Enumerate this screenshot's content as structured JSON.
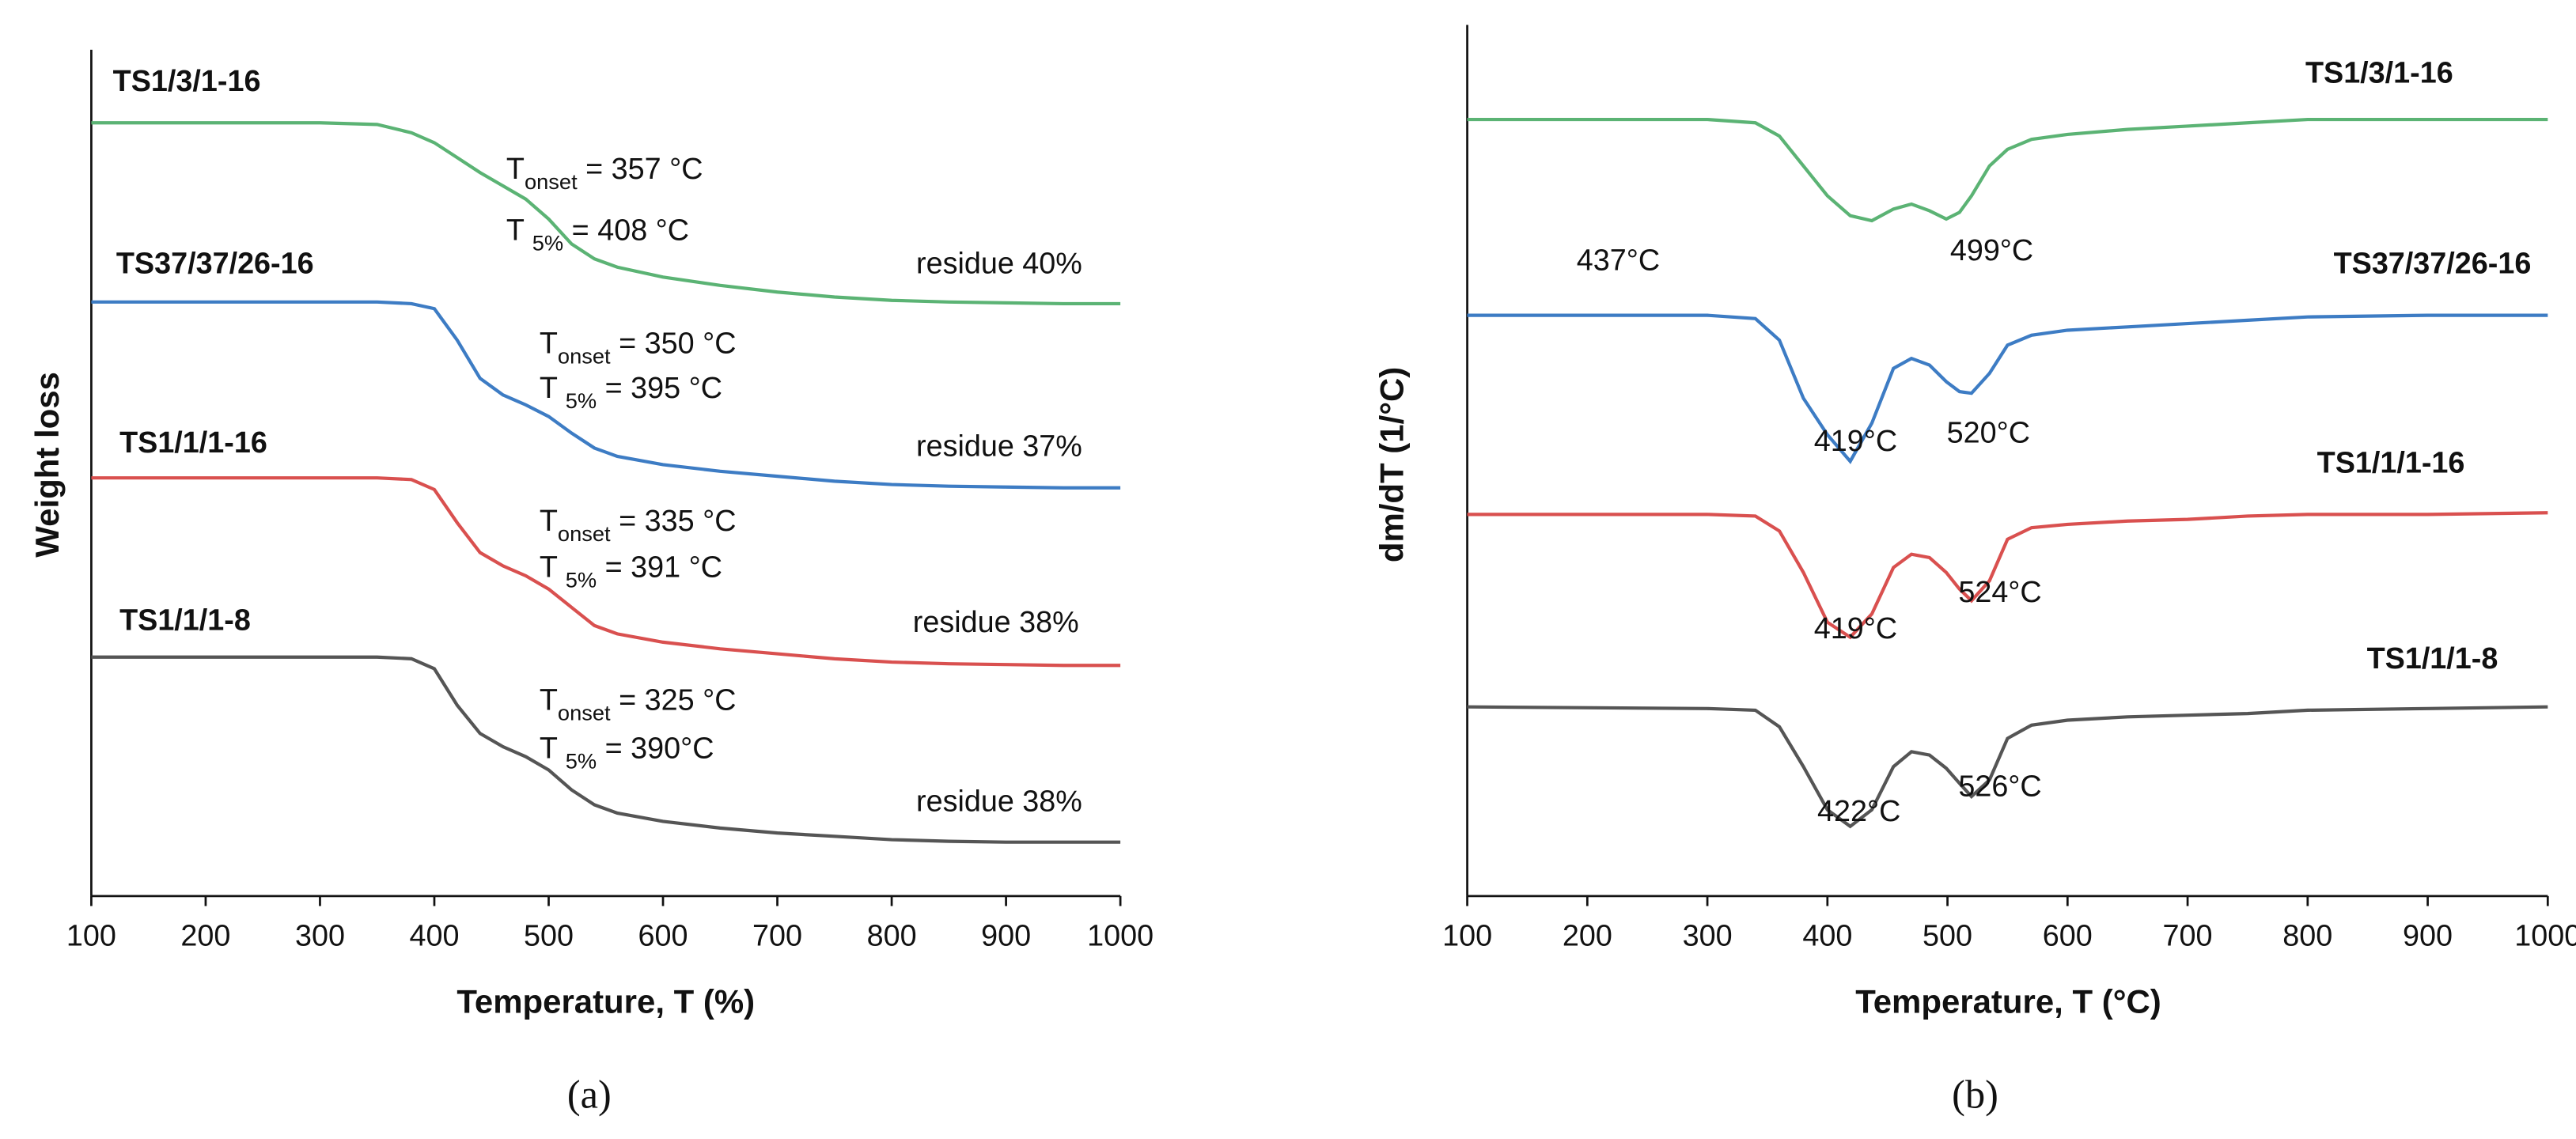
{
  "chart_data": [
    {
      "type": "line",
      "ylabel": "Weight loss",
      "xlabel": "Temperature, T (%)",
      "caption": "(a)",
      "xlim": [
        100,
        1000
      ],
      "xticks": [
        100,
        200,
        300,
        400,
        500,
        600,
        700,
        800,
        900,
        1000
      ],
      "ylim": [
        0,
        102
      ],
      "x": [
        100,
        200,
        300,
        350,
        380,
        400,
        420,
        440,
        460,
        480,
        500,
        520,
        540,
        560,
        600,
        650,
        700,
        750,
        800,
        850,
        900,
        950,
        1000
      ],
      "series": [
        {
          "name": "TS1/3/1-16",
          "color": "#5bb374",
          "values": [
            93.2,
            93.2,
            93.2,
            93,
            92,
            90.8,
            89,
            87.2,
            85.6,
            84,
            81.6,
            78.6,
            76.8,
            75.8,
            74.6,
            73.6,
            72.8,
            72.2,
            71.8,
            71.6,
            71.5,
            71.4,
            71.4
          ]
        },
        {
          "name": "TS37/37/26-16",
          "color": "#3d7cc4",
          "values": [
            71.6,
            71.6,
            71.6,
            71.6,
            71.4,
            70.8,
            67,
            62.4,
            60.4,
            59.2,
            57.8,
            55.8,
            54,
            53,
            52,
            51.2,
            50.6,
            50,
            49.6,
            49.4,
            49.3,
            49.2,
            49.2
          ]
        },
        {
          "name": "TS1/1/1-16",
          "color": "#d9504f",
          "values": [
            50.4,
            50.4,
            50.4,
            50.4,
            50.2,
            49,
            45,
            41.4,
            39.8,
            38.6,
            37,
            34.8,
            32.6,
            31.6,
            30.6,
            29.8,
            29.2,
            28.6,
            28.2,
            28,
            27.9,
            27.8,
            27.8
          ]
        },
        {
          "name": "TS1/1/1-8",
          "color": "#555555",
          "values": [
            28.8,
            28.8,
            28.8,
            28.8,
            28.6,
            27.4,
            23,
            19.6,
            18,
            16.8,
            15.2,
            12.8,
            11,
            10,
            9,
            8.2,
            7.6,
            7.2,
            6.8,
            6.6,
            6.5,
            6.5,
            6.5
          ]
        }
      ],
      "annotations": [
        [
          "T",
          "onset",
          " = 357 °C"
        ],
        [
          "T ",
          "5%",
          " = 408 °C"
        ],
        [
          "T",
          "onset",
          " = 350 °C"
        ],
        [
          "T ",
          "5%",
          " = 395 °C"
        ],
        [
          "T",
          "onset",
          " = 335 °C"
        ],
        [
          "T ",
          "5%",
          " = 391 °C"
        ],
        [
          "T",
          "onset",
          " = 325 °C"
        ],
        [
          "T ",
          "5%",
          " = 390°C"
        ]
      ],
      "notes": [
        "residue 40%",
        "residue 37%",
        "residue 38%",
        "residue 38%"
      ]
    },
    {
      "type": "line",
      "ylabel": "dm/dT (1/°C)",
      "xlabel": "Temperature, T (°C)",
      "caption": "(b)",
      "xlim": [
        100,
        1000
      ],
      "xticks": [
        100,
        200,
        300,
        400,
        500,
        600,
        700,
        800,
        900,
        1000
      ],
      "ylim": [
        0,
        105
      ],
      "x": [
        100,
        300,
        340,
        360,
        380,
        400,
        419,
        437,
        455,
        470,
        485,
        499,
        510,
        520,
        535,
        550,
        570,
        600,
        650,
        700,
        750,
        800,
        900,
        1000
      ],
      "series": [
        {
          "name": "TS1/3/1-16",
          "color": "#5bb374",
          "values": [
            93.6,
            93.6,
            93.2,
            91.6,
            88,
            84.4,
            82,
            81.4,
            82.8,
            83.4,
            82.6,
            81.6,
            82.4,
            84.4,
            88,
            90,
            91.2,
            91.8,
            92.4,
            92.8,
            93.2,
            93.6,
            93.6,
            93.6
          ]
        },
        {
          "name": "TS37/37/26-16",
          "color": "#3d7cc4",
          "values": [
            70,
            70,
            69.6,
            67,
            60,
            55.6,
            52.4,
            57,
            63.6,
            64.8,
            64,
            62,
            60.8,
            60.6,
            63,
            66.4,
            67.6,
            68.2,
            68.6,
            69,
            69.4,
            69.8,
            70,
            70
          ]
        },
        {
          "name": "TS1/1/1-16",
          "color": "#d9504f",
          "values": [
            46,
            46,
            45.8,
            44,
            39,
            33,
            31.2,
            34,
            39.6,
            41.2,
            40.8,
            39,
            37,
            35.6,
            38,
            43,
            44.4,
            44.8,
            45.2,
            45.4,
            45.8,
            46,
            46,
            46.2
          ]
        },
        {
          "name": "TS1/1/1-8",
          "color": "#555555",
          "values": [
            22.8,
            22.6,
            22.4,
            20.4,
            15.6,
            10.4,
            8.4,
            10.4,
            15.6,
            17.4,
            17,
            15.4,
            13.6,
            12,
            14,
            19,
            20.6,
            21.2,
            21.6,
            21.8,
            22,
            22.4,
            22.6,
            22.8
          ]
        }
      ],
      "notes": [
        "437°C",
        "499°C",
        "419°C",
        "520°C",
        "419°C",
        "524°C",
        "422°C",
        "526°C"
      ]
    }
  ]
}
